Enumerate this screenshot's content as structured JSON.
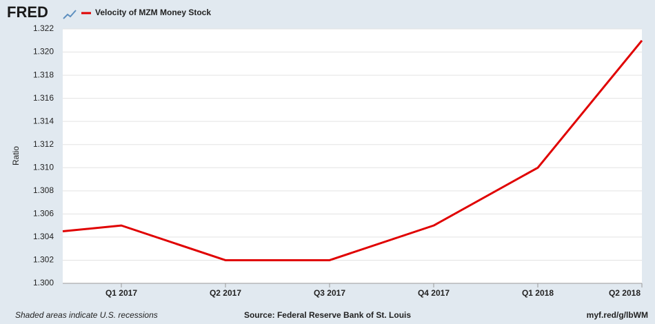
{
  "chart_data": {
    "type": "line",
    "logo": "FRED",
    "y_label": "Ratio",
    "note": "Shaded areas indicate U.S. recessions",
    "source": "Source: Federal Reserve Bank of St. Louis",
    "link": "myf.red/g/lbWM",
    "categories": [
      null,
      "Q1 2017",
      "Q2 2017",
      "Q3 2017",
      "Q4 2017",
      "Q1 2018",
      "Q2 2018"
    ],
    "series": [
      {
        "name": "Velocity of MZM Money Stock",
        "color": "#e00000",
        "values": [
          1.3045,
          1.305,
          1.302,
          1.302,
          1.305,
          1.31,
          1.321
        ]
      }
    ],
    "ylim": [
      1.3,
      1.322
    ],
    "yticks": [
      {
        "value": 1.3,
        "label": "1.300"
      },
      1.302,
      1.304,
      1.306,
      1.308,
      {
        "value": 1.31,
        "label": "1.310"
      },
      1.312,
      1.314,
      1.316,
      1.318,
      {
        "value": 1.32,
        "label": "1.320"
      },
      1.322
    ],
    "grid": true
  }
}
